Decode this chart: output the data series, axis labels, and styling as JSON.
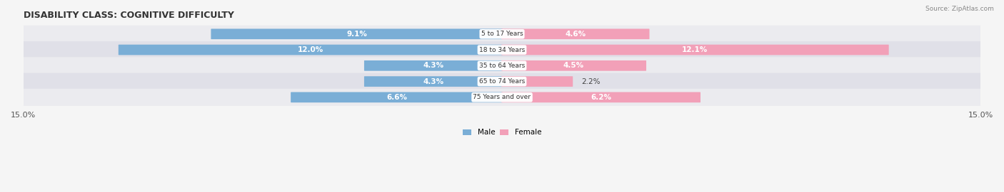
{
  "title": "DISABILITY CLASS: COGNITIVE DIFFICULTY",
  "source": "Source: ZipAtlas.com",
  "categories": [
    "5 to 17 Years",
    "18 to 34 Years",
    "35 to 64 Years",
    "65 to 74 Years",
    "75 Years and over"
  ],
  "male_values": [
    9.1,
    12.0,
    4.3,
    4.3,
    6.6
  ],
  "female_values": [
    4.6,
    12.1,
    4.5,
    2.2,
    6.2
  ],
  "male_color": "#7aaed6",
  "female_color": "#f2a0b8",
  "male_label": "Male",
  "female_label": "Female",
  "xlim": 15.0,
  "bar_height": 0.62,
  "row_color_even": "#ebebef",
  "row_color_odd": "#e0e0e8",
  "background_color": "#f5f5f5",
  "title_fontsize": 9,
  "label_fontsize": 7.5,
  "tick_fontsize": 8,
  "source_fontsize": 6.5,
  "legend_fontsize": 7.5,
  "small_bar_threshold": 3.5
}
